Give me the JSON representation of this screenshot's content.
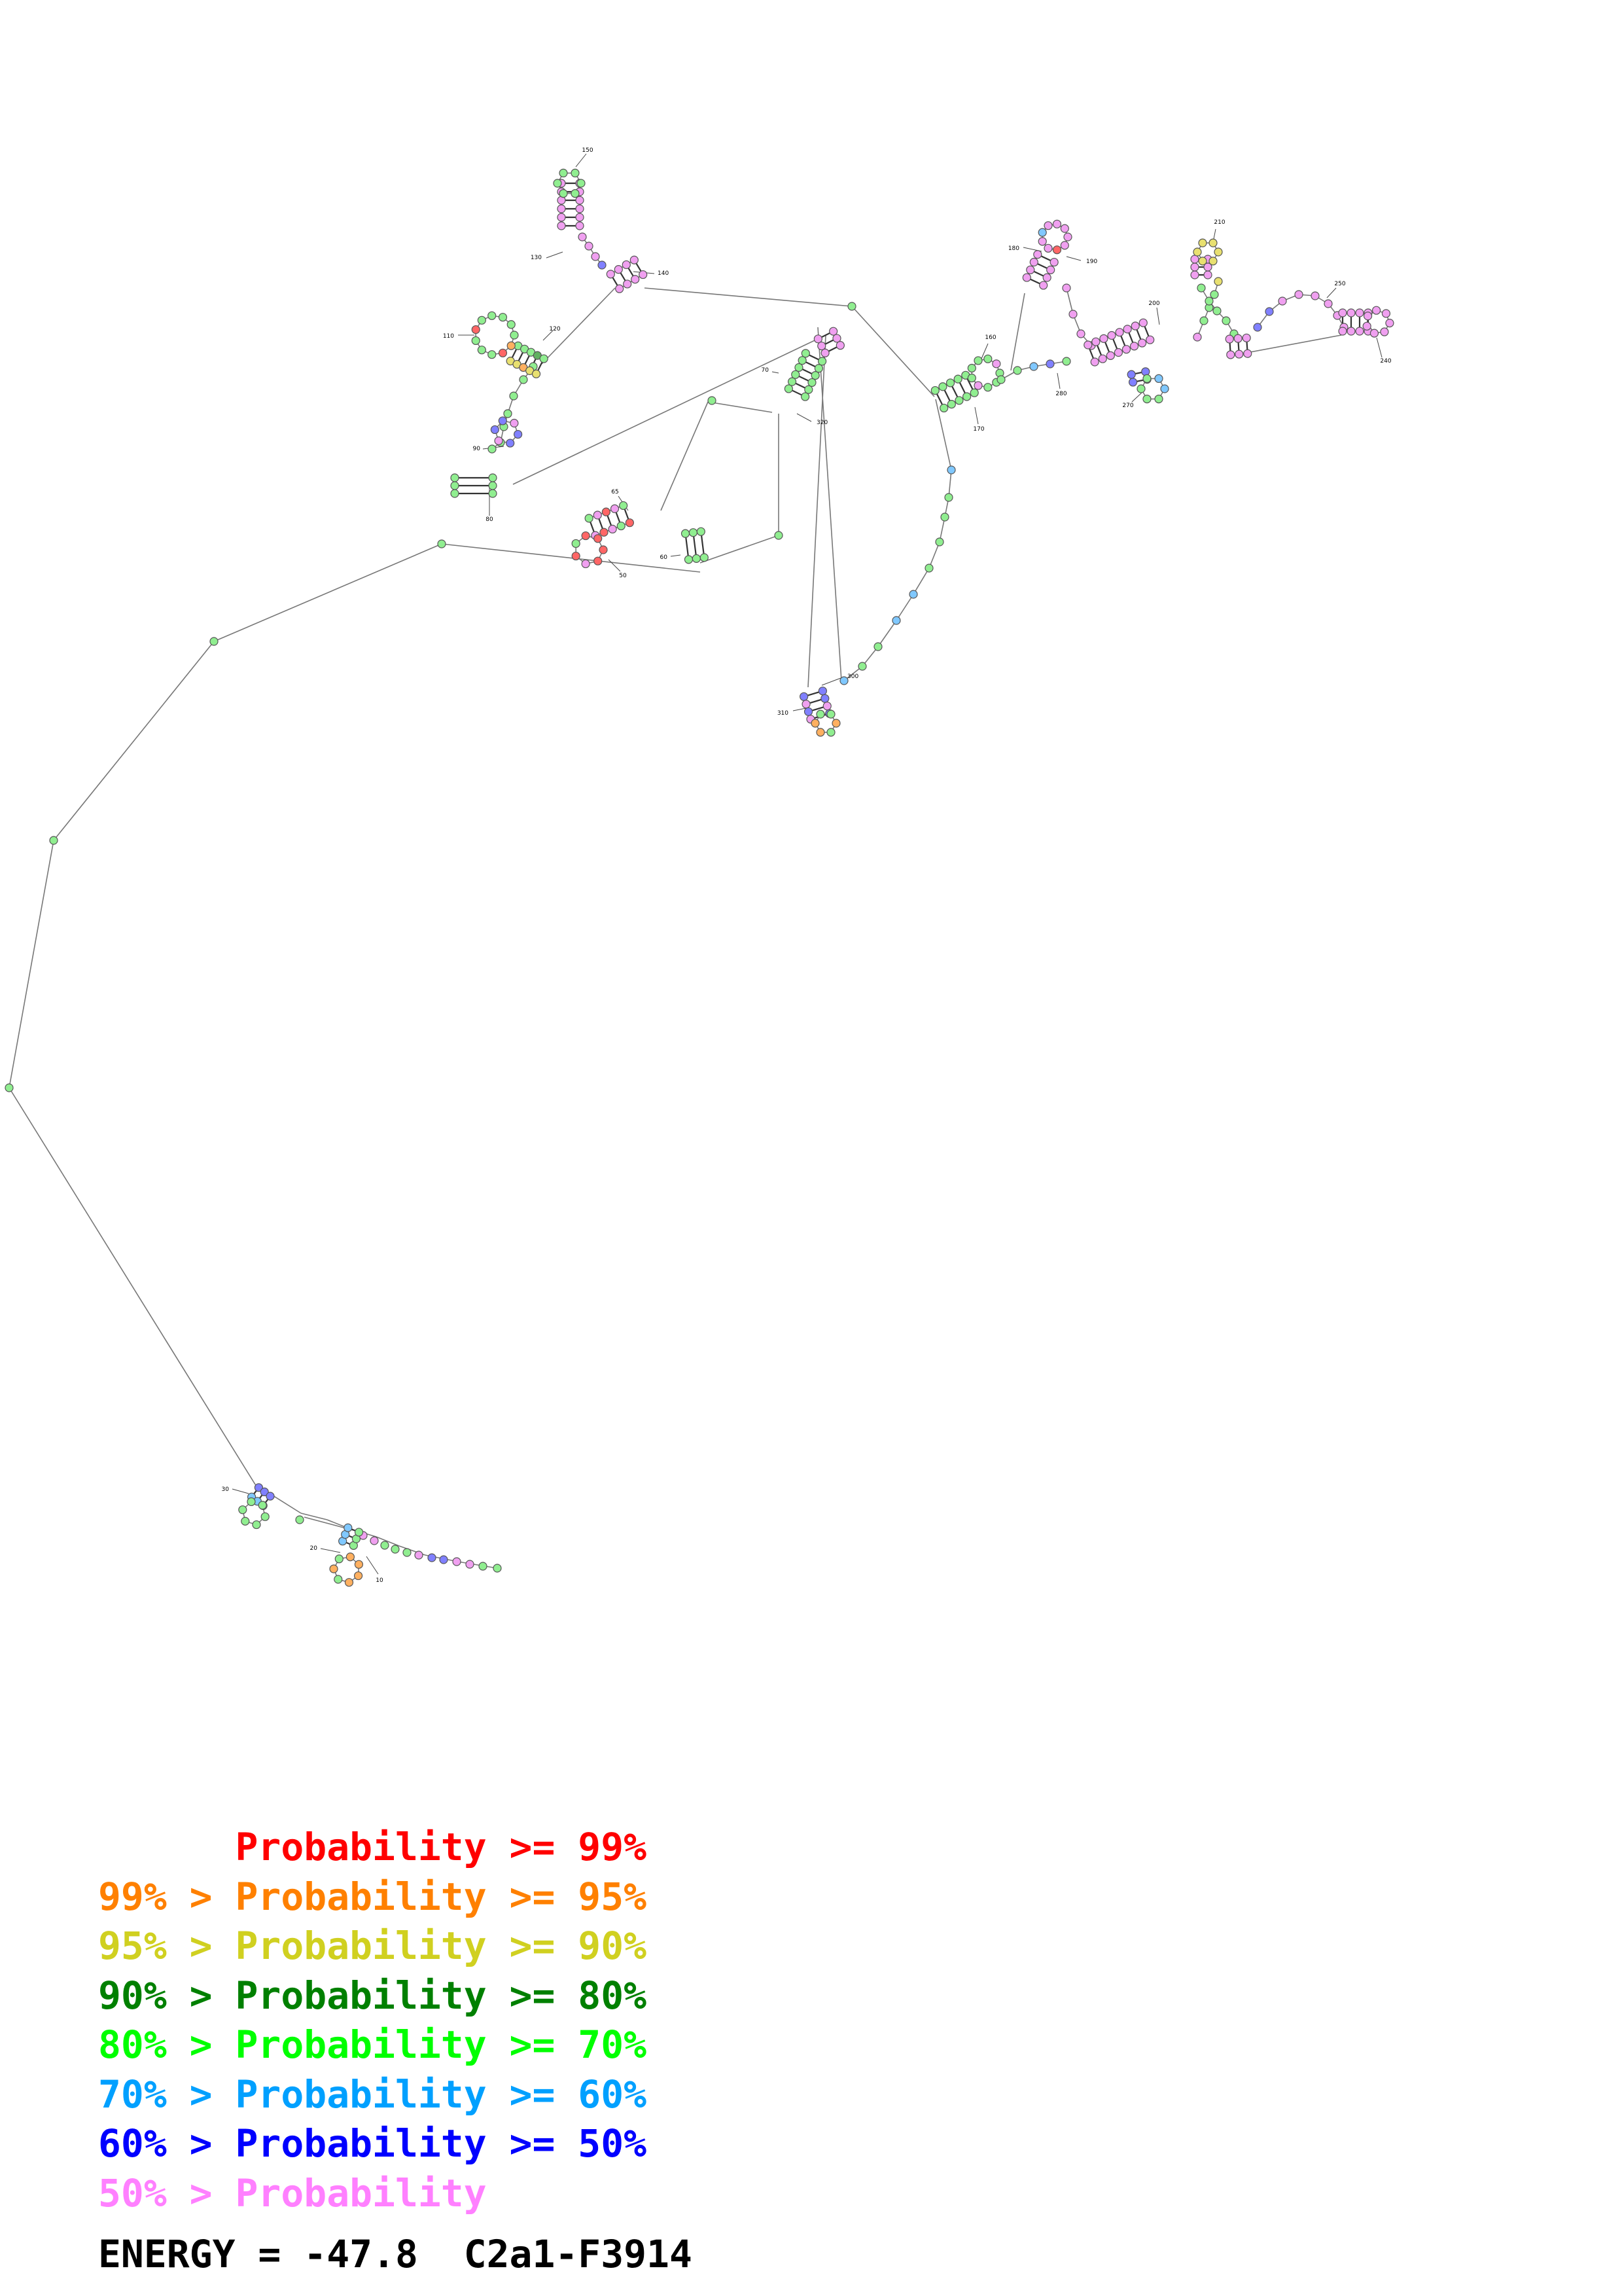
{
  "legend": [
    {
      "prefix": "",
      "text": "Probability >= 99%",
      "color": "#ff0000"
    },
    {
      "prefix": "99% > ",
      "text": "Probability >= 95%",
      "color": "#ff8000"
    },
    {
      "prefix": "95% > ",
      "text": "Probability >= 90%",
      "color": "#d0d020"
    },
    {
      "prefix": "90% > ",
      "text": "Probability >= 80%",
      "color": "#008000"
    },
    {
      "prefix": "80% > ",
      "text": "Probability >= 70%",
      "color": "#00ff00"
    },
    {
      "prefix": "70% > ",
      "text": "Probability >= 60%",
      "color": "#00a0ff"
    },
    {
      "prefix": "60% > ",
      "text": "Probability >= 50%",
      "color": "#0000ff"
    },
    {
      "prefix": "50% > ",
      "text": "Probability",
      "color": "#ff80ff"
    }
  ],
  "energy_label": "ENERGY = -47.8  C2a1-F3914",
  "position_labels": [
    "10",
    "20",
    "30",
    "50",
    "60",
    "65",
    "70",
    "80",
    "90",
    "110",
    "120",
    "130",
    "140",
    "150",
    "160",
    "170",
    "180",
    "190",
    "200",
    "210",
    "240",
    "250",
    "260",
    "270",
    "280",
    "300",
    "310",
    "320"
  ],
  "base_colors": {
    "red": "#ff6666",
    "orange": "#ffb060",
    "yellow": "#e8e070",
    "dark_green": "#60b060",
    "green": "#90ee90",
    "light_blue": "#80c8ff",
    "blue": "#8080ff",
    "pink": "#f0a0f0"
  }
}
